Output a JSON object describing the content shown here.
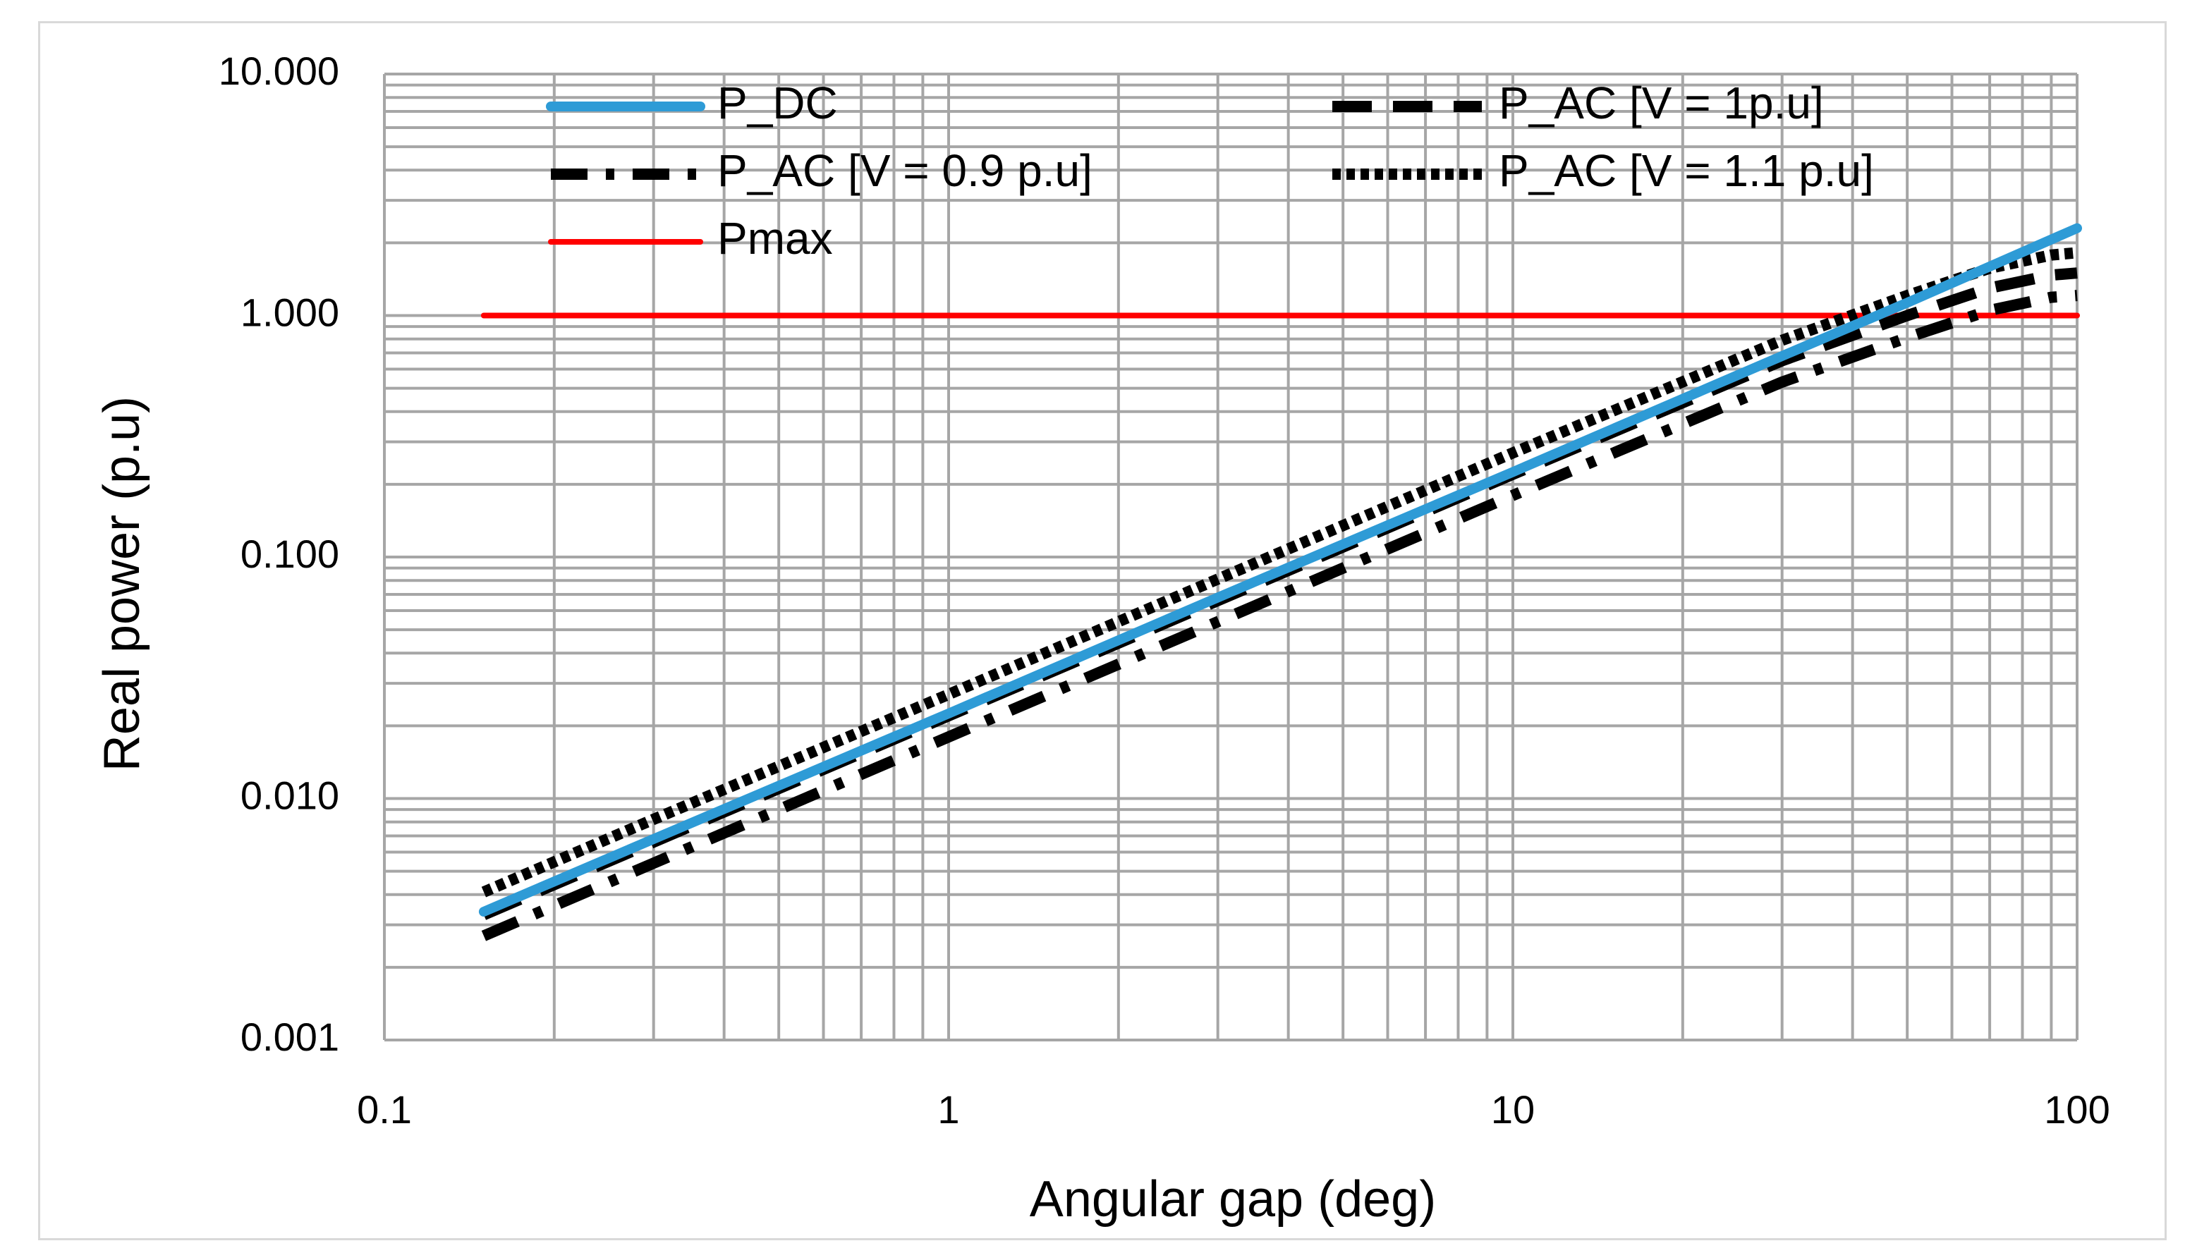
{
  "chart_data": {
    "type": "line",
    "title": "",
    "xlabel": "Angular gap (deg)",
    "ylabel": "Real power  (p.u)",
    "xscale": "log",
    "yscale": "log",
    "xlim": [
      0.1,
      100
    ],
    "ylim": [
      0.001,
      10
    ],
    "x_ticks": [
      0.1,
      1,
      10,
      100
    ],
    "x_tick_labels": [
      "0.1",
      "1",
      "10",
      "100"
    ],
    "y_ticks": [
      0.001,
      0.01,
      0.1,
      1,
      10
    ],
    "y_tick_labels": [
      "0.001",
      "0.010",
      "0.100",
      "1.000",
      "10.000"
    ],
    "grid": true,
    "legend_position": "top",
    "series": [
      {
        "name": "P_DC",
        "color": "#2e9bd6",
        "style": "solid",
        "x": [
          0.15,
          0.3,
          1,
          3,
          10,
          30,
          50,
          100
        ],
        "y": [
          0.0034,
          0.0068,
          0.0225,
          0.068,
          0.225,
          0.68,
          1.13,
          2.3
        ]
      },
      {
        "name": "P_AC [V = 1p.u]",
        "color": "#000000",
        "style": "dashed",
        "x": [
          0.15,
          0.3,
          1,
          3,
          10,
          30,
          50,
          70,
          90,
          100
        ],
        "y": [
          0.0033,
          0.0066,
          0.022,
          0.066,
          0.22,
          0.65,
          1.0,
          1.3,
          1.47,
          1.5
        ]
      },
      {
        "name": "P_AC [V = 0.9 p.u]",
        "color": "#000000",
        "style": "dashdot",
        "x": [
          0.15,
          0.3,
          1,
          3,
          10,
          30,
          50,
          70,
          90,
          100
        ],
        "y": [
          0.0027,
          0.0054,
          0.018,
          0.054,
          0.18,
          0.53,
          0.81,
          1.05,
          1.19,
          1.21
        ]
      },
      {
        "name": "P_AC [V = 1.1 p.u]",
        "color": "#000000",
        "style": "dotted",
        "x": [
          0.15,
          0.3,
          1,
          3,
          10,
          30,
          50,
          70,
          90,
          100
        ],
        "y": [
          0.0041,
          0.0082,
          0.027,
          0.081,
          0.27,
          0.79,
          1.21,
          1.57,
          1.78,
          1.82
        ]
      },
      {
        "name": "Pmax",
        "color": "#ff0000",
        "style": "solid",
        "x": [
          0.15,
          100
        ],
        "y": [
          1.0,
          1.0
        ]
      }
    ]
  }
}
